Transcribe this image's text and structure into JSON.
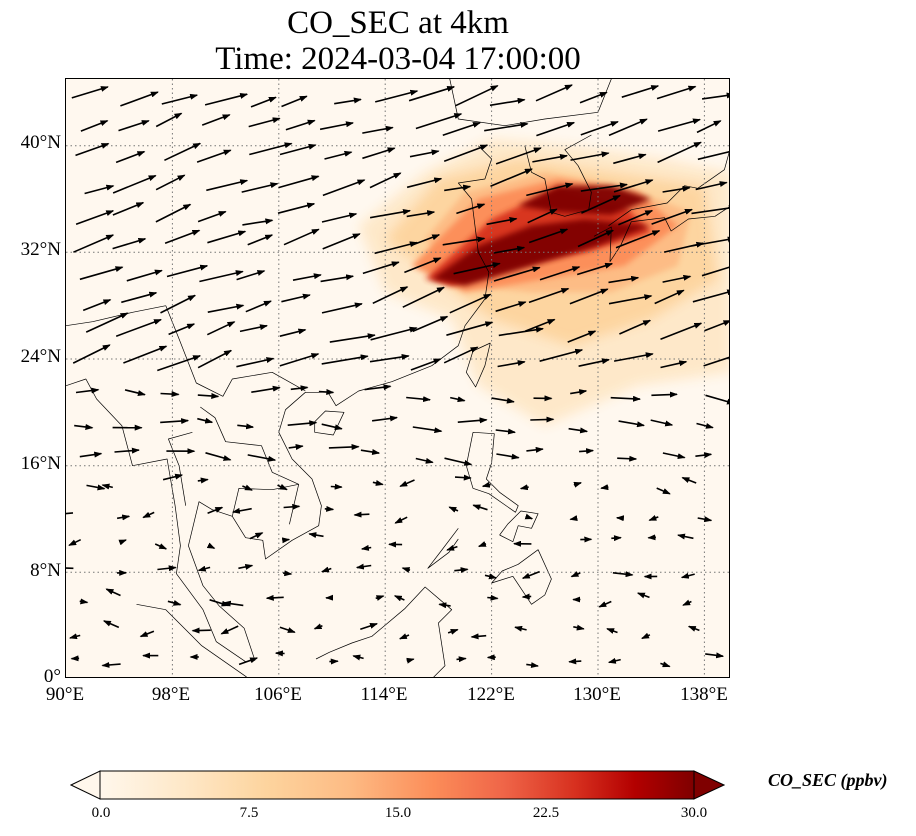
{
  "title": {
    "line1": "CO_SEC at 4km",
    "line2": "Time: 2024-03-04 17:00:00"
  },
  "map": {
    "region": "East and Southeast Asia",
    "lon_range": [
      90,
      140
    ],
    "lat_range": [
      0,
      45
    ],
    "gridlines": "dotted",
    "background_color": "#fff8ef",
    "coastline_color": "#000000",
    "wind_arrow_color": "#000000",
    "lat_ticks": [
      "0°",
      "8°N",
      "16°N",
      "24°N",
      "32°N",
      "40°N"
    ],
    "lon_ticks": [
      "90°E",
      "98°E",
      "106°E",
      "114°E",
      "122°E",
      "130°E",
      "138°E"
    ]
  },
  "colorbar": {
    "label": "CO_SEC (ppbv)",
    "ticks": [
      "0.0",
      "7.5",
      "15.0",
      "22.5",
      "30.0"
    ],
    "min": 0,
    "max": 30,
    "extend": "both",
    "colormap": "OrRd",
    "colors": [
      "#fff7ec",
      "#fee8c8",
      "#fdd49e",
      "#fdbb84",
      "#fc8d59",
      "#ef6548",
      "#d7301f",
      "#b30000",
      "#7f0000"
    ]
  }
}
